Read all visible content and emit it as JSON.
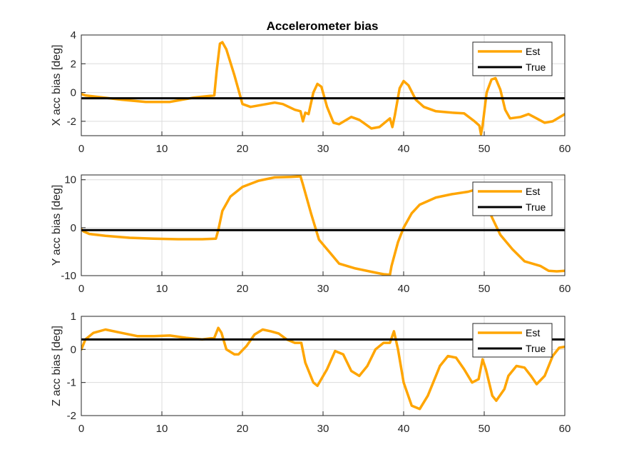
{
  "figure": {
    "title": "Accelerometer bias",
    "colors": {
      "est": "#FFA500",
      "true": "#000000",
      "grid": "#DCDCDC",
      "axis": "#262626"
    }
  },
  "legend": {
    "est_label": "Est",
    "true_label": "True",
    "placement": "top-right"
  },
  "chart_data": [
    {
      "type": "line",
      "title": "Accelerometer bias",
      "xlabel": "",
      "ylabel": "X acc bias [deg]",
      "xlim": [
        0,
        60
      ],
      "ylim": [
        -3,
        4
      ],
      "xticks": [
        0,
        10,
        20,
        30,
        40,
        50,
        60
      ],
      "yticks": [
        -2,
        0,
        2,
        4
      ],
      "grid": true,
      "legend_position": "top-right",
      "series": [
        {
          "name": "Est",
          "color": "#FFA500",
          "points": [
            [
              0,
              -0.1
            ],
            [
              0.5,
              -0.2
            ],
            [
              2,
              -0.3
            ],
            [
              5,
              -0.5
            ],
            [
              8,
              -0.65
            ],
            [
              11,
              -0.65
            ],
            [
              12,
              -0.55
            ],
            [
              14,
              -0.35
            ],
            [
              16.5,
              -0.2
            ],
            [
              16.8,
              1.5
            ],
            [
              17.2,
              3.4
            ],
            [
              17.5,
              3.5
            ],
            [
              18,
              3.0
            ],
            [
              19,
              1.2
            ],
            [
              20,
              -0.8
            ],
            [
              21,
              -1.0
            ],
            [
              22,
              -0.9
            ],
            [
              24,
              -0.7
            ],
            [
              25,
              -0.8
            ],
            [
              26.5,
              -1.2
            ],
            [
              27.2,
              -1.3
            ],
            [
              27.5,
              -2.0
            ],
            [
              27.8,
              -1.4
            ],
            [
              28.2,
              -1.5
            ],
            [
              28.8,
              0.0
            ],
            [
              29.3,
              0.6
            ],
            [
              29.8,
              0.4
            ],
            [
              30.5,
              -1.0
            ],
            [
              31.3,
              -2.1
            ],
            [
              32,
              -2.2
            ],
            [
              33.5,
              -1.7
            ],
            [
              34.5,
              -1.9
            ],
            [
              36,
              -2.5
            ],
            [
              37,
              -2.4
            ],
            [
              38.3,
              -1.8
            ],
            [
              38.6,
              -2.4
            ],
            [
              38.9,
              -1.6
            ],
            [
              39.5,
              0.3
            ],
            [
              40,
              0.8
            ],
            [
              40.6,
              0.5
            ],
            [
              41.5,
              -0.5
            ],
            [
              42.5,
              -1.0
            ],
            [
              44,
              -1.3
            ],
            [
              46,
              -1.4
            ],
            [
              47.5,
              -1.45
            ],
            [
              48.8,
              -2.0
            ],
            [
              49.4,
              -2.3
            ],
            [
              49.6,
              -2.9
            ],
            [
              49.8,
              -2.3
            ],
            [
              50.3,
              0.0
            ],
            [
              50.9,
              0.9
            ],
            [
              51.4,
              1.0
            ],
            [
              52,
              0.2
            ],
            [
              52.6,
              -1.2
            ],
            [
              53.2,
              -1.8
            ],
            [
              54.5,
              -1.7
            ],
            [
              55.5,
              -1.5
            ],
            [
              56.5,
              -1.8
            ],
            [
              57.5,
              -2.1
            ],
            [
              58.5,
              -2.0
            ],
            [
              60,
              -1.5
            ]
          ]
        },
        {
          "name": "True",
          "color": "#000000",
          "points": [
            [
              0,
              -0.4
            ],
            [
              60,
              -0.4
            ]
          ]
        }
      ]
    },
    {
      "type": "line",
      "xlabel": "",
      "ylabel": "Y acc bias [deg]",
      "xlim": [
        0,
        60
      ],
      "ylim": [
        -10,
        11
      ],
      "xticks": [
        0,
        10,
        20,
        30,
        40,
        50,
        60
      ],
      "yticks": [
        -10,
        0,
        10
      ],
      "grid": true,
      "legend_position": "top-right",
      "series": [
        {
          "name": "Est",
          "color": "#FFA500",
          "points": [
            [
              0,
              -0.3
            ],
            [
              0.3,
              -0.8
            ],
            [
              1,
              -1.3
            ],
            [
              3,
              -1.7
            ],
            [
              6,
              -2.1
            ],
            [
              9,
              -2.3
            ],
            [
              12,
              -2.4
            ],
            [
              15,
              -2.4
            ],
            [
              16.7,
              -2.3
            ],
            [
              17,
              -0.5
            ],
            [
              17.5,
              3.5
            ],
            [
              18.5,
              6.5
            ],
            [
              20,
              8.5
            ],
            [
              22,
              9.8
            ],
            [
              24,
              10.5
            ],
            [
              26,
              10.6
            ],
            [
              27.2,
              10.7
            ],
            [
              27.5,
              9.0
            ],
            [
              28.5,
              3.0
            ],
            [
              29.5,
              -2.5
            ],
            [
              31,
              -5.5
            ],
            [
              32,
              -7.5
            ],
            [
              34,
              -8.5
            ],
            [
              36,
              -9.2
            ],
            [
              37.5,
              -9.7
            ],
            [
              38.3,
              -9.8
            ],
            [
              38.5,
              -8.0
            ],
            [
              39.3,
              -3.0
            ],
            [
              40,
              0.0
            ],
            [
              41,
              3.0
            ],
            [
              42,
              4.8
            ],
            [
              44,
              6.3
            ],
            [
              46,
              7.0
            ],
            [
              48,
              7.5
            ],
            [
              49.5,
              8.2
            ],
            [
              50,
              6.0
            ],
            [
              51,
              2.0
            ],
            [
              52,
              -1.5
            ],
            [
              53.5,
              -4.5
            ],
            [
              55,
              -7.0
            ],
            [
              57,
              -8.0
            ],
            [
              58,
              -9.0
            ],
            [
              59,
              -9.1
            ],
            [
              60,
              -9.0
            ]
          ]
        },
        {
          "name": "True",
          "color": "#000000",
          "points": [
            [
              0,
              -0.5
            ],
            [
              60,
              -0.5
            ]
          ]
        }
      ]
    },
    {
      "type": "line",
      "xlabel": "",
      "ylabel": "Z acc bias [deg]",
      "xlim": [
        0,
        60
      ],
      "ylim": [
        -2,
        1
      ],
      "xticks": [
        0,
        10,
        20,
        30,
        40,
        50,
        60
      ],
      "yticks": [
        -2,
        -1,
        0,
        1
      ],
      "grid": true,
      "legend_position": "top-right",
      "series": [
        {
          "name": "Est",
          "color": "#FFA500",
          "points": [
            [
              0,
              0.0
            ],
            [
              0.5,
              0.3
            ],
            [
              1.5,
              0.5
            ],
            [
              3,
              0.6
            ],
            [
              5,
              0.5
            ],
            [
              7,
              0.4
            ],
            [
              9,
              0.4
            ],
            [
              11,
              0.42
            ],
            [
              13,
              0.35
            ],
            [
              15,
              0.3
            ],
            [
              16.5,
              0.35
            ],
            [
              17,
              0.65
            ],
            [
              17.4,
              0.5
            ],
            [
              18,
              0.0
            ],
            [
              19,
              -0.15
            ],
            [
              19.5,
              -0.15
            ],
            [
              20.5,
              0.1
            ],
            [
              21.5,
              0.45
            ],
            [
              22.5,
              0.6
            ],
            [
              23.5,
              0.55
            ],
            [
              24.5,
              0.48
            ],
            [
              25.5,
              0.3
            ],
            [
              26.5,
              0.2
            ],
            [
              27.3,
              0.2
            ],
            [
              27.8,
              -0.4
            ],
            [
              28.8,
              -1.0
            ],
            [
              29.3,
              -1.1
            ],
            [
              30.5,
              -0.6
            ],
            [
              31.5,
              -0.05
            ],
            [
              32.5,
              -0.15
            ],
            [
              33.5,
              -0.65
            ],
            [
              34.5,
              -0.8
            ],
            [
              35.5,
              -0.5
            ],
            [
              36.5,
              0.0
            ],
            [
              37.5,
              0.2
            ],
            [
              38.3,
              0.2
            ],
            [
              38.8,
              0.55
            ],
            [
              39.3,
              0.0
            ],
            [
              40,
              -1.0
            ],
            [
              41,
              -1.7
            ],
            [
              42,
              -1.8
            ],
            [
              43,
              -1.4
            ],
            [
              44.5,
              -0.5
            ],
            [
              45.5,
              -0.2
            ],
            [
              46.5,
              -0.25
            ],
            [
              47.5,
              -0.6
            ],
            [
              48.5,
              -1.0
            ],
            [
              49.3,
              -0.9
            ],
            [
              49.8,
              -0.3
            ],
            [
              50.2,
              -0.6
            ],
            [
              51,
              -1.4
            ],
            [
              51.5,
              -1.55
            ],
            [
              52.5,
              -1.2
            ],
            [
              53,
              -0.8
            ],
            [
              54,
              -0.5
            ],
            [
              55,
              -0.55
            ],
            [
              55.8,
              -0.8
            ],
            [
              56.5,
              -1.05
            ],
            [
              57.5,
              -0.8
            ],
            [
              58.5,
              -0.2
            ],
            [
              59.3,
              0.05
            ],
            [
              60,
              0.08
            ]
          ]
        },
        {
          "name": "True",
          "color": "#000000",
          "points": [
            [
              0,
              0.3
            ],
            [
              60,
              0.3
            ]
          ]
        }
      ]
    }
  ]
}
